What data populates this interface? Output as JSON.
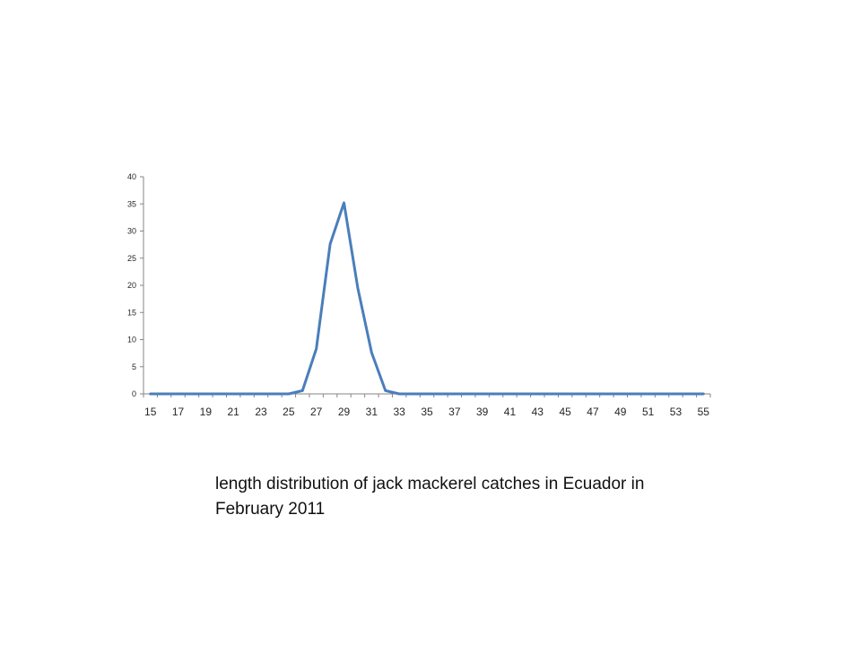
{
  "chart_data": {
    "type": "line",
    "x": [
      15,
      16,
      17,
      18,
      19,
      20,
      21,
      22,
      23,
      24,
      25,
      26,
      27,
      28,
      29,
      30,
      31,
      32,
      33,
      34,
      35,
      36,
      37,
      38,
      39,
      40,
      41,
      42,
      43,
      44,
      45,
      46,
      47,
      48,
      49,
      50,
      51,
      52,
      53,
      54,
      55
    ],
    "series": [
      {
        "values": [
          0,
          0,
          0,
          0,
          0,
          0,
          0,
          0,
          0,
          0,
          0,
          0.6,
          8.3,
          27.6,
          35.2,
          19.5,
          7.6,
          0.6,
          0,
          0,
          0,
          0,
          0,
          0,
          0,
          0,
          0,
          0,
          0,
          0,
          0,
          0,
          0,
          0,
          0,
          0,
          0,
          0,
          0,
          0,
          0
        ],
        "color": "#4a7ebb"
      }
    ],
    "x_tick_labels": [
      "15",
      "17",
      "19",
      "21",
      "23",
      "25",
      "27",
      "29",
      "31",
      "33",
      "35",
      "37",
      "39",
      "41",
      "43",
      "45",
      "47",
      "49",
      "51",
      "53",
      "55"
    ],
    "y_ticks": [
      0,
      5,
      10,
      15,
      20,
      25,
      30,
      35,
      40
    ],
    "ylim": [
      0,
      40
    ],
    "grid": false,
    "legend": "none"
  },
  "caption": "length distribution of jack mackerel catches in Ecuador in February 2011"
}
